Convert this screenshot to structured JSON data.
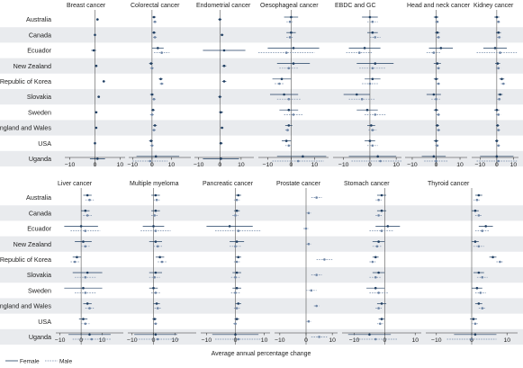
{
  "countries": [
    "Australia",
    "Canada",
    "Ecuador",
    "New Zealand",
    "Republic of Korea",
    "Slovakia",
    "Sweden",
    "England and Wales",
    "USA",
    "Uganda"
  ],
  "x_axis_label": "Average annual percentage change",
  "legend": {
    "female": "Female",
    "male": "Male"
  },
  "colors": {
    "band": "#e9ebee",
    "female": "#1f3e62",
    "male": "#6f86a6",
    "ref": "#555555"
  },
  "chart_data": [
    {
      "type": "forest",
      "title": "Breast cancer",
      "xlim": [
        -12,
        12
      ],
      "ticks": [
        -10,
        0,
        10
      ],
      "series": [
        {
          "name": "Female",
          "est": [
            1.0,
            0.0,
            -0.5,
            0.5,
            3.5,
            1.5,
            0.5,
            0.5,
            0.0,
            1.0
          ],
          "lo": [
            0.5,
            -0.3,
            -1.5,
            0.0,
            3.0,
            1.0,
            0.0,
            0.2,
            -0.3,
            -2.0
          ],
          "hi": [
            1.5,
            0.3,
            0.5,
            1.0,
            4.0,
            2.0,
            1.0,
            0.8,
            0.3,
            4.0
          ]
        }
      ]
    },
    {
      "type": "forest",
      "title": "Colorectal cancer",
      "xlim": [
        -12,
        20
      ],
      "ticks": [
        -10,
        0,
        10
      ],
      "series": [
        {
          "name": "Female",
          "est": [
            1.0,
            1.0,
            3.0,
            -0.5,
            4.5,
            0.0,
            0.5,
            1.5,
            -0.5,
            2.0
          ],
          "lo": [
            0.0,
            0.0,
            0.0,
            -1.5,
            3.5,
            -1.0,
            -0.5,
            0.5,
            -1.5,
            -8.0
          ],
          "hi": [
            2.0,
            2.0,
            6.0,
            0.5,
            5.5,
            1.0,
            1.5,
            2.5,
            0.5,
            14.0
          ]
        },
        {
          "name": "Male",
          "est": [
            1.5,
            1.5,
            5.0,
            0.0,
            5.0,
            1.0,
            0.0,
            1.0,
            0.0,
            -1.0
          ],
          "lo": [
            0.5,
            0.5,
            1.0,
            -1.0,
            4.0,
            0.0,
            -1.0,
            0.0,
            -1.0,
            -10.0
          ],
          "hi": [
            2.5,
            2.5,
            9.0,
            1.0,
            6.0,
            2.0,
            1.0,
            2.0,
            1.0,
            8.0
          ]
        }
      ]
    },
    {
      "type": "forest",
      "title": "Endometrial cancer",
      "xlim": [
        -12,
        16
      ],
      "ticks": [
        -10,
        0,
        10
      ],
      "series": [
        {
          "name": "Female",
          "est": [
            0.0,
            1.0,
            2.0,
            2.0,
            2.0,
            0.0,
            0.5,
            1.0,
            0.5,
            0.5
          ],
          "lo": [
            -0.8,
            0.3,
            -8.0,
            1.0,
            1.0,
            -0.8,
            -0.5,
            0.3,
            -0.3,
            -8.0
          ],
          "hi": [
            0.8,
            1.7,
            12.0,
            3.0,
            3.0,
            0.8,
            1.5,
            1.7,
            1.3,
            9.0
          ]
        }
      ]
    },
    {
      "type": "forest",
      "title": "Oesophageal cancer",
      "xlim": [
        -14,
        16
      ],
      "ticks": [
        -10,
        0,
        10
      ],
      "series": [
        {
          "name": "Female",
          "est": [
            0.0,
            0.0,
            1.0,
            1.0,
            -4.0,
            -3.0,
            -1.0,
            -1.0,
            -2.0,
            5.0
          ],
          "lo": [
            -3.0,
            -2.0,
            -10.0,
            -6.0,
            -8.0,
            -9.0,
            -5.0,
            -2.5,
            -4.0,
            -6.0
          ],
          "hi": [
            3.0,
            2.0,
            12.0,
            8.0,
            0.0,
            3.0,
            3.0,
            0.5,
            0.0,
            15.0
          ]
        },
        {
          "name": "Male",
          "est": [
            -0.5,
            -0.5,
            -2.0,
            -1.0,
            -5.0,
            -1.0,
            1.0,
            -1.5,
            -1.0,
            3.0
          ],
          "lo": [
            -2.0,
            -2.0,
            -14.0,
            -5.0,
            -7.0,
            -6.0,
            -3.0,
            -2.5,
            -2.5,
            -8.0
          ],
          "hi": [
            1.0,
            1.0,
            10.0,
            3.0,
            -3.0,
            4.0,
            5.0,
            -0.5,
            0.5,
            14.0
          ]
        }
      ]
    },
    {
      "type": "forest",
      "title": "EBDC and GC",
      "xlim": [
        -14,
        12
      ],
      "ticks": [
        -10,
        0,
        10
      ],
      "series": [
        {
          "name": "Female",
          "est": [
            0.0,
            1.0,
            -2.0,
            2.0,
            1.0,
            -5.0,
            -1.0,
            0.5,
            0.0,
            3.0
          ],
          "lo": [
            -3.0,
            -1.0,
            -8.0,
            -5.0,
            -2.0,
            -10.0,
            -5.0,
            -1.0,
            -2.0,
            -8.0
          ],
          "hi": [
            3.0,
            3.0,
            4.0,
            9.0,
            4.0,
            0.0,
            3.0,
            2.0,
            2.0,
            10.0
          ]
        },
        {
          "name": "Male",
          "est": [
            1.0,
            2.0,
            -4.0,
            1.0,
            0.0,
            -3.0,
            2.0,
            1.0,
            1.0,
            4.0
          ],
          "lo": [
            -1.0,
            0.0,
            -9.0,
            -4.0,
            -3.0,
            -8.0,
            -2.0,
            -0.5,
            -1.0,
            -7.0
          ],
          "hi": [
            3.0,
            4.0,
            1.0,
            6.0,
            3.0,
            2.0,
            6.0,
            2.5,
            3.0,
            12.0
          ]
        }
      ]
    },
    {
      "type": "forest",
      "title": "Head and neck cancer",
      "xlim": [
        -13,
        13
      ],
      "ticks": [
        -10,
        0,
        10
      ],
      "series": [
        {
          "name": "Female",
          "est": [
            0.0,
            0.5,
            2.0,
            0.5,
            0.0,
            -1.0,
            0.0,
            0.5,
            0.0,
            -1.0
          ],
          "lo": [
            -1.0,
            -0.5,
            -3.0,
            -1.0,
            -1.0,
            -4.0,
            -1.0,
            -0.3,
            -1.0,
            -6.0
          ],
          "hi": [
            1.0,
            1.5,
            7.0,
            2.0,
            1.0,
            2.0,
            1.0,
            1.3,
            1.0,
            4.0
          ]
        },
        {
          "name": "Male",
          "est": [
            0.5,
            1.0,
            -1.0,
            1.0,
            1.0,
            0.0,
            1.0,
            1.0,
            0.5,
            0.0
          ],
          "lo": [
            -0.5,
            0.0,
            -4.0,
            0.0,
            0.0,
            -2.0,
            0.0,
            0.3,
            -0.5,
            -5.0
          ],
          "hi": [
            1.5,
            2.0,
            2.0,
            2.0,
            2.0,
            2.0,
            2.0,
            1.7,
            1.5,
            5.0
          ]
        }
      ]
    },
    {
      "type": "forest",
      "title": "Kidney cancer",
      "xlim": [
        -15,
        13
      ],
      "ticks": [
        -10,
        0,
        10
      ],
      "series": [
        {
          "name": "Female",
          "est": [
            0.0,
            1.0,
            -1.0,
            0.5,
            3.0,
            2.0,
            0.0,
            0.5,
            0.0,
            0.0
          ],
          "lo": [
            -1.5,
            -0.5,
            -8.0,
            -1.0,
            1.5,
            0.5,
            -1.5,
            -0.5,
            -1.0,
            -10.0
          ],
          "hi": [
            1.5,
            2.5,
            6.0,
            2.0,
            4.5,
            3.5,
            1.5,
            1.5,
            1.0,
            10.0
          ]
        },
        {
          "name": "Male",
          "est": [
            1.0,
            1.5,
            2.0,
            1.0,
            4.0,
            1.5,
            1.0,
            1.0,
            1.0,
            1.0
          ],
          "lo": [
            0.0,
            0.0,
            -12.0,
            -0.5,
            2.5,
            0.0,
            -0.5,
            0.0,
            0.0,
            -12.0
          ],
          "hi": [
            2.0,
            3.0,
            12.0,
            2.5,
            5.5,
            3.0,
            2.5,
            2.0,
            2.0,
            12.0
          ]
        }
      ]
    },
    {
      "type": "forest",
      "title": "Liver cancer",
      "xlim": [
        -12,
        20
      ],
      "ticks": [
        -10,
        0,
        10
      ],
      "series": [
        {
          "name": "Female",
          "est": [
            3.0,
            2.0,
            0.0,
            1.0,
            -2.0,
            3.0,
            1.0,
            3.0,
            1.0,
            4.0
          ],
          "lo": [
            1.0,
            0.0,
            -8.0,
            -3.0,
            -4.0,
            -4.0,
            -8.0,
            1.0,
            -1.0,
            -6.0
          ],
          "hi": [
            5.0,
            4.0,
            8.0,
            5.0,
            0.0,
            10.0,
            10.0,
            5.0,
            3.0,
            14.0
          ]
        },
        {
          "name": "Male",
          "est": [
            4.0,
            3.0,
            2.0,
            2.0,
            -3.0,
            2.0,
            2.0,
            4.0,
            2.0,
            5.0
          ],
          "lo": [
            2.0,
            1.0,
            -5.0,
            0.0,
            -5.0,
            -3.0,
            -3.0,
            2.0,
            0.0,
            -4.0
          ],
          "hi": [
            6.0,
            5.0,
            9.0,
            4.0,
            -1.0,
            7.0,
            7.0,
            6.0,
            4.0,
            14.0
          ]
        }
      ]
    },
    {
      "type": "forest",
      "title": "Multiple myeloma",
      "xlim": [
        -12,
        20
      ],
      "ticks": [
        -10,
        0,
        10
      ],
      "series": [
        {
          "name": "Female",
          "est": [
            1.0,
            1.0,
            0.0,
            1.0,
            3.0,
            1.0,
            0.0,
            1.5,
            0.5,
            1.0
          ],
          "lo": [
            -1.0,
            -1.0,
            -5.0,
            -2.0,
            1.0,
            -2.0,
            -2.0,
            0.0,
            -0.5,
            -9.0
          ],
          "hi": [
            3.0,
            3.0,
            5.0,
            4.0,
            5.0,
            4.0,
            2.0,
            3.0,
            1.5,
            11.0
          ]
        },
        {
          "name": "Male",
          "est": [
            1.5,
            0.5,
            1.0,
            2.0,
            4.0,
            0.5,
            1.0,
            2.0,
            1.0,
            2.0
          ],
          "lo": [
            0.0,
            -1.0,
            -6.0,
            0.0,
            2.0,
            -2.0,
            -1.0,
            0.5,
            0.0,
            -8.0
          ],
          "hi": [
            3.0,
            2.0,
            8.0,
            4.0,
            6.0,
            3.0,
            3.0,
            3.5,
            2.0,
            12.0
          ]
        }
      ]
    },
    {
      "type": "forest",
      "title": "Pancreatic cancer",
      "xlim": [
        -12,
        12
      ],
      "ticks": [
        -10,
        0,
        10
      ],
      "series": [
        {
          "name": "Female",
          "est": [
            1.0,
            0.5,
            -2.0,
            0.5,
            1.0,
            0.5,
            0.5,
            1.0,
            0.5,
            0.0
          ],
          "lo": [
            0.0,
            -0.5,
            -10.0,
            -2.0,
            0.0,
            -1.0,
            -1.0,
            0.0,
            -0.3,
            -8.0
          ],
          "hi": [
            2.0,
            1.5,
            6.0,
            3.0,
            2.0,
            2.0,
            2.0,
            2.0,
            1.3,
            8.0
          ]
        },
        {
          "name": "Male",
          "est": [
            0.5,
            0.0,
            1.0,
            0.0,
            0.5,
            0.0,
            0.0,
            0.5,
            0.0,
            1.0
          ],
          "lo": [
            -0.5,
            -1.0,
            -7.0,
            -2.0,
            -0.5,
            -1.5,
            -1.5,
            -0.5,
            -0.8,
            -7.0
          ],
          "hi": [
            1.5,
            1.0,
            9.0,
            2.0,
            1.5,
            1.5,
            1.5,
            1.5,
            0.8,
            9.0
          ]
        }
      ]
    },
    {
      "type": "forest",
      "title": "Prostate cancer",
      "xlim": [
        -12,
        12
      ],
      "ticks": [
        -10,
        0,
        10
      ],
      "series": [
        {
          "name": "Male",
          "est": [
            4.0,
            1.0,
            0.0,
            1.0,
            7.0,
            4.0,
            2.0,
            4.0,
            1.0,
            5.0
          ],
          "lo": [
            2.0,
            0.0,
            -1.0,
            0.0,
            4.0,
            2.0,
            0.0,
            3.0,
            0.0,
            2.0
          ],
          "hi": [
            6.0,
            2.0,
            1.0,
            2.0,
            10.0,
            6.0,
            4.0,
            5.0,
            2.0,
            8.0
          ]
        }
      ]
    },
    {
      "type": "forest",
      "title": "Stomach cancer",
      "xlim": [
        -14,
        12
      ],
      "ticks": [
        -10,
        0,
        10
      ],
      "series": [
        {
          "name": "Female",
          "est": [
            -1.0,
            -1.0,
            1.0,
            -2.0,
            -3.0,
            -2.0,
            -3.0,
            -1.0,
            -1.0,
            -5.0
          ],
          "lo": [
            -2.5,
            -2.5,
            -3.0,
            -4.0,
            -4.0,
            -4.0,
            -6.0,
            -2.5,
            -2.0,
            -12.0
          ],
          "hi": [
            0.5,
            0.5,
            5.0,
            0.0,
            -2.0,
            0.0,
            0.0,
            0.5,
            0.0,
            2.0
          ]
        },
        {
          "name": "Male",
          "est": [
            -2.0,
            -2.0,
            -1.0,
            -2.5,
            -4.0,
            -3.0,
            -2.0,
            -2.0,
            -1.5,
            -3.0
          ],
          "lo": [
            -3.0,
            -3.0,
            -5.0,
            -4.0,
            -5.0,
            -5.0,
            -5.0,
            -3.0,
            -2.5,
            -10.0
          ],
          "hi": [
            -1.0,
            -1.0,
            3.0,
            -1.0,
            -3.0,
            -1.0,
            1.0,
            -1.0,
            -0.5,
            4.0
          ]
        }
      ]
    },
    {
      "type": "forest",
      "title": "Thyroid cancer",
      "xlim": [
        -13,
        13
      ],
      "ticks": [
        -10,
        0,
        10
      ],
      "series": [
        {
          "name": "Female",
          "est": [
            2.0,
            1.0,
            4.0,
            1.0,
            6.0,
            2.0,
            1.5,
            2.0,
            0.5,
            1.0
          ],
          "lo": [
            1.0,
            0.0,
            2.0,
            0.0,
            5.0,
            0.5,
            0.0,
            1.0,
            -0.5,
            -5.0
          ],
          "hi": [
            3.0,
            2.0,
            6.0,
            2.0,
            7.0,
            3.5,
            3.0,
            3.0,
            1.5,
            7.0
          ]
        },
        {
          "name": "Male",
          "est": [
            1.5,
            2.0,
            3.0,
            2.0,
            8.0,
            3.0,
            2.5,
            3.0,
            1.0,
            0.0
          ],
          "lo": [
            0.5,
            1.0,
            1.0,
            0.5,
            7.0,
            1.5,
            1.0,
            2.0,
            0.0,
            -7.0
          ],
          "hi": [
            2.5,
            3.0,
            5.0,
            3.5,
            9.0,
            4.5,
            4.0,
            4.0,
            2.0,
            7.0
          ]
        }
      ]
    }
  ]
}
